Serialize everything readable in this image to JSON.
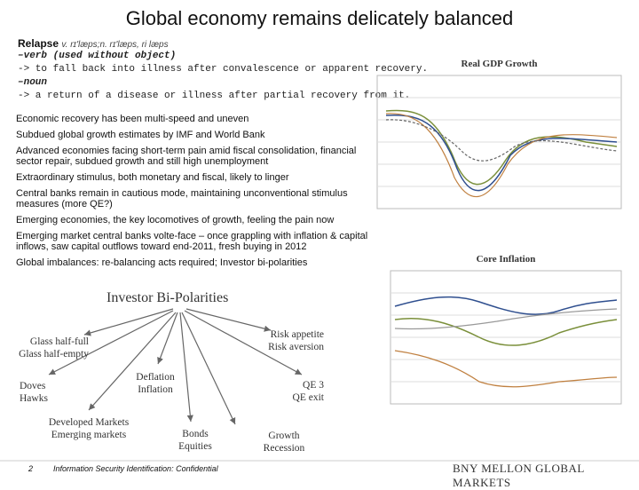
{
  "header": {
    "title": "Global economy remains delicately balanced"
  },
  "definition": {
    "word": "Relapse",
    "pronunciation": "v. rɪ'læps;n. rɪ'læps, ri læps",
    "lines": [
      "–verb (used without object)",
      "-> to fall back into illness after convalescence or apparent recovery.",
      "–noun",
      "-> a return of a disease or illness after partial recovery from it."
    ]
  },
  "bullets": [
    "Economic recovery has been multi-speed and uneven",
    "Subdued global growth estimates by IMF and World Bank",
    "Advanced economies facing short-term pain amid fiscal consolidation, financial sector repair, subdued growth and still high unemployment",
    "Extraordinary stimulus, both monetary and fiscal, likely to linger",
    "Central banks remain in cautious mode, maintaining unconventional stimulus measures (more QE?)",
    "Emerging economies, the key locomotives of growth, feeling the pain now",
    "Emerging market central banks volte-face – once grappling with inflation & capital inflows, saw capital outflows toward end-2011, fresh buying in 2012",
    "Global imbalances: re-balancing acts required; Investor bi-polarities"
  ],
  "diagram": {
    "hub": "Investor Bi-Polarities",
    "nodes": [
      {
        "lines": [
          "Glass half-full",
          "Glass half-empty"
        ]
      },
      {
        "lines": [
          "Doves",
          "Hawks"
        ]
      },
      {
        "lines": [
          "Developed Markets",
          "Emerging markets"
        ]
      },
      {
        "lines": [
          "Deflation",
          "Inflation"
        ]
      },
      {
        "lines": [
          "Bonds",
          "Equities"
        ]
      },
      {
        "lines": [
          "Growth",
          "Recession"
        ]
      },
      {
        "lines": [
          "QE 3",
          "QE exit"
        ]
      },
      {
        "lines": [
          "Risk appetite",
          "Risk aversion"
        ]
      }
    ]
  },
  "charts": [
    {
      "title": "Real GDP Growth"
    },
    {
      "title": "Core Inflation"
    }
  ],
  "footer": {
    "page": "2",
    "classification": "Information Security Identification: Confidential",
    "brand": "BNY MELLON GLOBAL MARKETS"
  }
}
